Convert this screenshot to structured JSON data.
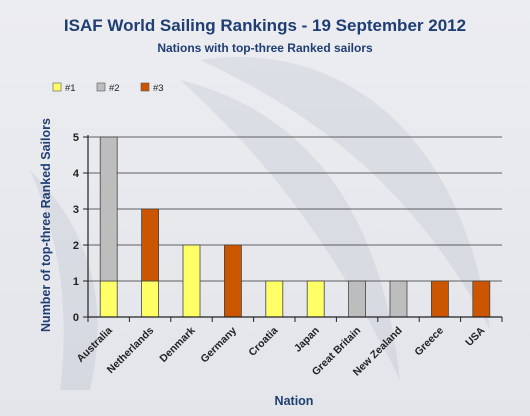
{
  "chart_data": {
    "type": "bar",
    "stacked": true,
    "title": "ISAF World Sailing Rankings - 19 September 2012",
    "subtitle": "Nations with top-three Ranked sailors",
    "xlabel": "Nation",
    "ylabel": "Number of top-three Ranked Sailors",
    "ylim": [
      0,
      5
    ],
    "yticks": [
      "0",
      "1",
      "2",
      "3",
      "4",
      "5"
    ],
    "grid": true,
    "legend_position": "top-left",
    "categories": [
      "Australia",
      "Netherlands",
      "Denmark",
      "Germany",
      "Croatia",
      "Japan",
      "Great Britain",
      "New Zealand",
      "Greece",
      "USA"
    ],
    "series": [
      {
        "name": "#1",
        "color": "#ffff66",
        "values": [
          1,
          1,
          2,
          0,
          1,
          1,
          0,
          0,
          0,
          0
        ]
      },
      {
        "name": "#2",
        "color": "#bdbdbd",
        "values": [
          4,
          0,
          0,
          0,
          0,
          0,
          1,
          1,
          0,
          0
        ]
      },
      {
        "name": "#3",
        "color": "#cc5500",
        "values": [
          0,
          2,
          0,
          2,
          0,
          0,
          0,
          0,
          1,
          1
        ]
      }
    ],
    "colors": {
      "title": "#1f3e72",
      "axis": "#222222",
      "grid": "#333333"
    }
  }
}
